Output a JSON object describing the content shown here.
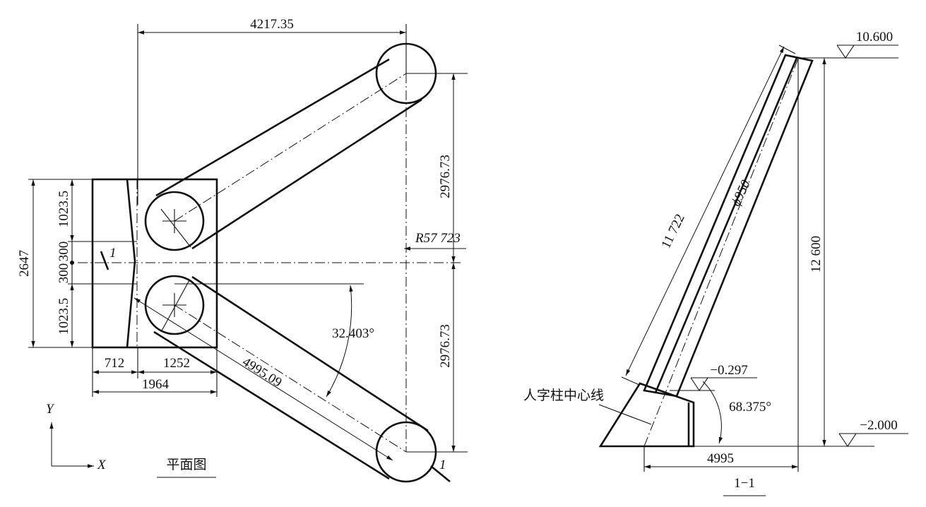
{
  "plan_view": {
    "title": "平面图",
    "dims": {
      "top_width": "4217.35",
      "right_upper": "2976.73",
      "right_lower": "2976.73",
      "radius": "R57 723",
      "left_total": "2647",
      "left_upper": "1023.5",
      "left_mid_upper": "300",
      "left_mid_lower": "300",
      "left_lower": "1023.5",
      "bottom_a": "712",
      "bottom_b": "1252",
      "bottom_total": "1964",
      "diagonal": "4995.09",
      "angle": "32.403°"
    },
    "section_marks": [
      "1",
      "1"
    ],
    "axes": {
      "y": "Y",
      "x": "X"
    }
  },
  "section_view": {
    "title": "1−1",
    "dims": {
      "elev_top": "10.600",
      "elev_mid": "−0.297",
      "elev_bottom": "−2.000",
      "length": "11 722",
      "diameter": "ϕ950",
      "height": "12 600",
      "base": "4995",
      "angle": "68.375°"
    },
    "annotation": "人字柱中心线"
  }
}
